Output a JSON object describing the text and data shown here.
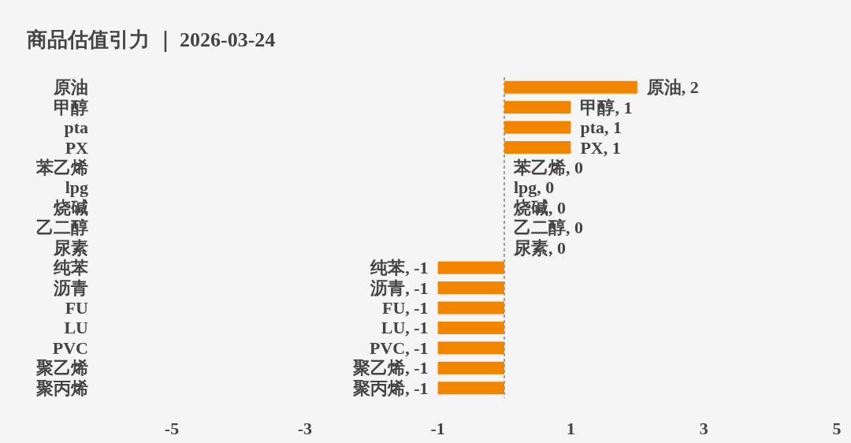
{
  "chart_data": {
    "type": "bar",
    "orientation": "horizontal",
    "title": "商品估值引力 ｜ 2026-03-24",
    "categories": [
      "原油",
      "甲醇",
      "pta",
      "PX",
      "苯乙烯",
      "lpg",
      "烧碱",
      "乙二醇",
      "尿素",
      "纯苯",
      "沥青",
      "FU",
      "LU",
      "PVC",
      "聚乙烯",
      "聚丙烯"
    ],
    "values": [
      2,
      1,
      1,
      1,
      0,
      0,
      0,
      0,
      0,
      -1,
      -1,
      -1,
      -1,
      -1,
      -1,
      -1
    ],
    "value_labels": [
      "原油, 2",
      "甲醇, 1",
      "pta, 1",
      "PX, 1",
      "苯乙烯, 0",
      "lpg, 0",
      "烧碱, 0",
      "乙二醇, 0",
      "尿素, 0",
      "纯苯, -1",
      "沥青, -1",
      "FU, -1",
      "LU, -1",
      "PVC, -1",
      "聚乙烯, -1",
      "聚丙烯, -1"
    ],
    "color": "#f28500",
    "xlim": [
      -5,
      5
    ],
    "xticks": [
      -5,
      -3,
      -1,
      1,
      3,
      5
    ],
    "ref_lines": [
      {
        "axis": "x",
        "value": 0,
        "color": "#666666",
        "line_style": "dashed"
      }
    ]
  }
}
